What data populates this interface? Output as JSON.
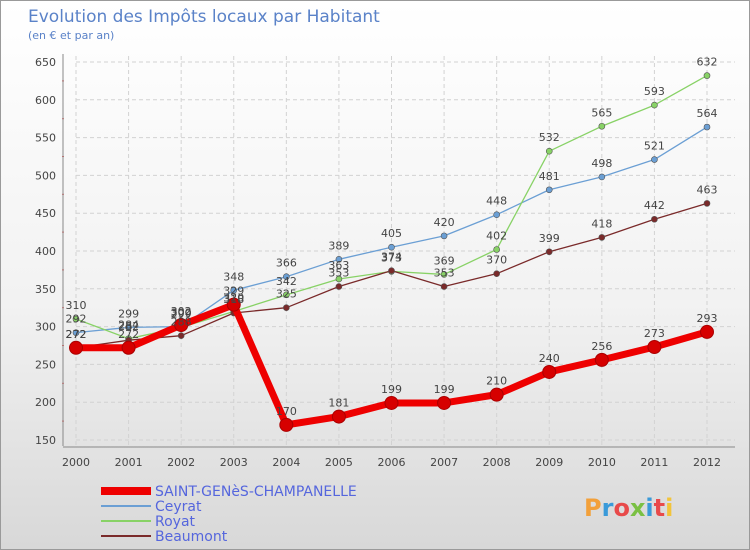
{
  "chart_data": {
    "type": "line",
    "title": "Evolution des Impôts locaux par Habitant",
    "subtitle": "(en € et par an)",
    "x": [
      "2000",
      "2001",
      "2002",
      "2003",
      "2004",
      "2005",
      "2006",
      "2007",
      "2008",
      "2009",
      "2010",
      "2011",
      "2012"
    ],
    "ylim": [
      150,
      650
    ],
    "yticks": [
      150,
      200,
      250,
      300,
      350,
      400,
      450,
      500,
      550,
      600,
      650
    ],
    "grid": true,
    "legend_position": "bottom-left",
    "series": [
      {
        "name": "SAINT-GENèS-CHAMPANELLE",
        "color": "#ee0000",
        "values": [
          272,
          272,
          302,
          329,
          170,
          181,
          199,
          199,
          210,
          240,
          256,
          273,
          293
        ]
      },
      {
        "name": "Ceyrat",
        "color": "#6b9fd4",
        "values": [
          292,
          299,
          300,
          348,
          366,
          389,
          405,
          420,
          448,
          481,
          498,
          521,
          564
        ]
      },
      {
        "name": "Royat",
        "color": "#88d266",
        "values": [
          310,
          284,
          299,
          320,
          342,
          363,
          373,
          369,
          402,
          532,
          565,
          593,
          632
        ]
      },
      {
        "name": "Beaumont",
        "color": "#7a2a2a",
        "values": [
          272,
          282,
          288,
          318,
          325,
          353,
          374,
          353,
          370,
          399,
          418,
          442,
          463
        ]
      }
    ]
  },
  "brand": {
    "name": "Proxiti"
  }
}
